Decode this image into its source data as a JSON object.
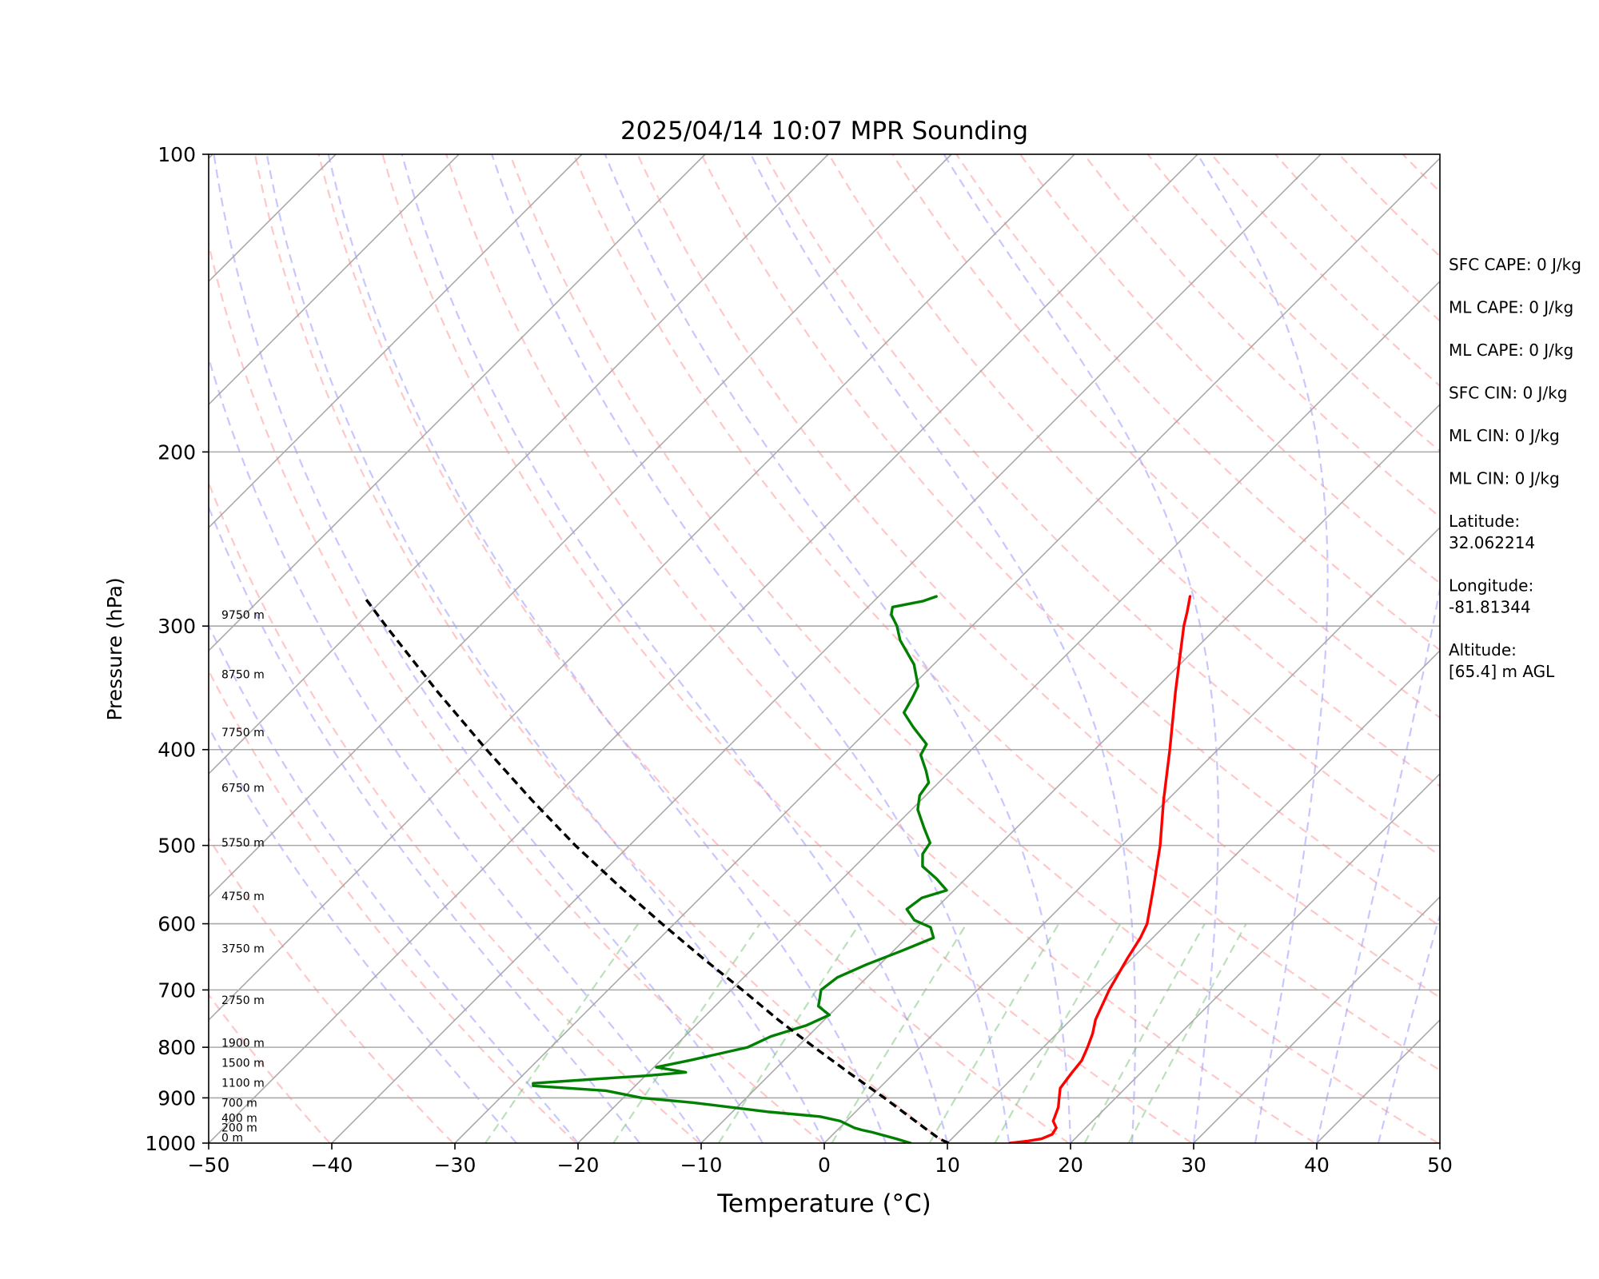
{
  "chart_data": {
    "type": "line",
    "subtype": "skew-T log-P sounding",
    "title": "2025/04/14 10:07 MPR Sounding",
    "xlabel": "Temperature (°C)",
    "ylabel": "Pressure (hPa)",
    "xlim": [
      -50,
      50
    ],
    "ylim": [
      1000,
      100
    ],
    "y_scale": "log",
    "x_ticks": [
      "−50",
      "−40",
      "−30",
      "−20",
      "−10",
      "0",
      "10",
      "20",
      "30",
      "40",
      "50"
    ],
    "y_ticks": [
      "100",
      "200",
      "300",
      "400",
      "500",
      "600",
      "700",
      "800",
      "900",
      "1000"
    ],
    "y_tick_values": [
      100,
      200,
      300,
      400,
      500,
      600,
      700,
      800,
      900,
      1000
    ],
    "grid": "isobars at labeled pressures; skewed isotherms every 10 °C",
    "background_lines": {
      "isotherms": {
        "color": "#a9a9a9",
        "style": "solid",
        "every_celsius": 10
      },
      "dry_adiabats": {
        "color": "#ff9999",
        "style": "dashed",
        "theta_kelvin": [
          233,
          243,
          253,
          263,
          273,
          283,
          293,
          303,
          313,
          323,
          333,
          343,
          353,
          363,
          373,
          383,
          393,
          403,
          413,
          423,
          433,
          443,
          453,
          463,
          473,
          483,
          493
        ]
      },
      "moist_adiabats": {
        "color": "#9999ff",
        "style": "dashed",
        "surface_temp_celsius": [
          -25,
          -20,
          -15,
          -10,
          -5,
          0,
          5,
          10,
          15,
          20,
          25,
          30,
          35,
          40,
          45,
          50
        ]
      },
      "mixing_ratio_lines": {
        "color": "#66bb66",
        "style": "dashed",
        "g_per_kg": [
          0.4,
          1,
          2,
          4,
          7,
          10,
          16,
          20
        ],
        "top_pressure": 600
      }
    },
    "height_labels": [
      {
        "label": "0 m",
        "pressure": 1000
      },
      {
        "label": "200 m",
        "pressure": 977
      },
      {
        "label": "400 m",
        "pressure": 955
      },
      {
        "label": "700 m",
        "pressure": 922
      },
      {
        "label": "1100 m",
        "pressure": 880
      },
      {
        "label": "1500 m",
        "pressure": 840
      },
      {
        "label": "1900 m",
        "pressure": 802
      },
      {
        "label": "2750 m",
        "pressure": 726
      },
      {
        "label": "3750 m",
        "pressure": 644
      },
      {
        "label": "4750 m",
        "pressure": 570
      },
      {
        "label": "5750 m",
        "pressure": 503
      },
      {
        "label": "6750 m",
        "pressure": 443
      },
      {
        "label": "7750 m",
        "pressure": 389
      },
      {
        "label": "8750 m",
        "pressure": 340
      },
      {
        "label": "9750 m",
        "pressure": 296
      }
    ],
    "series": [
      {
        "key": "temperature",
        "color": "#ff0000",
        "style": "solid",
        "points": [
          [
            1000,
            15.1
          ],
          [
            995,
            16.4
          ],
          [
            990,
            17.3
          ],
          [
            980,
            17.8
          ],
          [
            965,
            17.6
          ],
          [
            950,
            16.8
          ],
          [
            920,
            16.1
          ],
          [
            900,
            15.4
          ],
          [
            880,
            14.7
          ],
          [
            850,
            14.4
          ],
          [
            825,
            14.2
          ],
          [
            800,
            13.6
          ],
          [
            775,
            12.9
          ],
          [
            750,
            12.0
          ],
          [
            700,
            10.7
          ],
          [
            650,
            9.6
          ],
          [
            620,
            9.0
          ],
          [
            600,
            8.4
          ],
          [
            550,
            5.9
          ],
          [
            500,
            3.1
          ],
          [
            450,
            -0.3
          ],
          [
            400,
            -3.9
          ],
          [
            350,
            -8.1
          ],
          [
            300,
            -12.8
          ],
          [
            290,
            -13.7
          ],
          [
            280,
            -14.7
          ]
        ]
      },
      {
        "key": "dewpoint",
        "color": "#008000",
        "style": "solid",
        "points": [
          [
            1000,
            7.0
          ],
          [
            990,
            5.5
          ],
          [
            975,
            3.0
          ],
          [
            970,
            2.0
          ],
          [
            965,
            1.2
          ],
          [
            950,
            -0.5
          ],
          [
            940,
            -2.5
          ],
          [
            930,
            -7.0
          ],
          [
            910,
            -14.0
          ],
          [
            900,
            -18.5
          ],
          [
            885,
            -22.0
          ],
          [
            875,
            -28.3
          ],
          [
            870,
            -28.5
          ],
          [
            860,
            -23.0
          ],
          [
            855,
            -20.0
          ],
          [
            848,
            -17.0
          ],
          [
            838,
            -19.8
          ],
          [
            825,
            -17.7
          ],
          [
            800,
            -14.0
          ],
          [
            780,
            -13.0
          ],
          [
            760,
            -11.0
          ],
          [
            742,
            -10.0
          ],
          [
            727,
            -11.6
          ],
          [
            712,
            -12.2
          ],
          [
            700,
            -12.7
          ],
          [
            680,
            -12.4
          ],
          [
            660,
            -11.1
          ],
          [
            640,
            -9.4
          ],
          [
            620,
            -7.8
          ],
          [
            605,
            -8.9
          ],
          [
            595,
            -10.8
          ],
          [
            580,
            -12.3
          ],
          [
            565,
            -12.0
          ],
          [
            555,
            -10.6
          ],
          [
            540,
            -12.4
          ],
          [
            525,
            -14.5
          ],
          [
            510,
            -15.5
          ],
          [
            497,
            -15.8
          ],
          [
            480,
            -17.5
          ],
          [
            460,
            -19.5
          ],
          [
            445,
            -20.5
          ],
          [
            432,
            -20.8
          ],
          [
            420,
            -22.0
          ],
          [
            405,
            -23.7
          ],
          [
            395,
            -24.1
          ],
          [
            380,
            -26.5
          ],
          [
            367,
            -28.5
          ],
          [
            355,
            -29.0
          ],
          [
            345,
            -29.5
          ],
          [
            328,
            -31.6
          ],
          [
            310,
            -34.7
          ],
          [
            300,
            -36.1
          ],
          [
            292,
            -37.5
          ],
          [
            287,
            -38.0
          ],
          [
            283,
            -36.0
          ],
          [
            280,
            -35.3
          ]
        ]
      },
      {
        "key": "parcel",
        "color": "#000000",
        "style": "dashed",
        "points": [
          [
            1000,
            10.1
          ],
          [
            990,
            9.0
          ],
          [
            970,
            7.3
          ],
          [
            950,
            5.6
          ],
          [
            900,
            1.2
          ],
          [
            850,
            -3.6
          ],
          [
            800,
            -8.6
          ],
          [
            750,
            -13.8
          ],
          [
            700,
            -19.1
          ],
          [
            650,
            -24.9
          ],
          [
            600,
            -31.0
          ],
          [
            550,
            -37.5
          ],
          [
            500,
            -44.4
          ],
          [
            450,
            -51.6
          ],
          [
            400,
            -59.4
          ],
          [
            350,
            -68.0
          ],
          [
            300,
            -77.6
          ],
          [
            280,
            -81.8
          ]
        ]
      }
    ]
  },
  "stats": [
    {
      "text": "SFC CAPE: 0 J/kg"
    },
    {
      "text": "ML CAPE: 0 J/kg"
    },
    {
      "text": "ML CAPE: 0 J/kg"
    },
    {
      "text": "SFC CIN: 0 J/kg"
    },
    {
      "text": "ML CIN: 0 J/kg"
    },
    {
      "text": "ML CIN: 0 J/kg"
    },
    {
      "label": "Latitude:",
      "value": "32.062214"
    },
    {
      "label": "Longitude:",
      "value": "-81.81344"
    },
    {
      "label": "Altitude:",
      "value": "[65.4] m AGL"
    }
  ]
}
